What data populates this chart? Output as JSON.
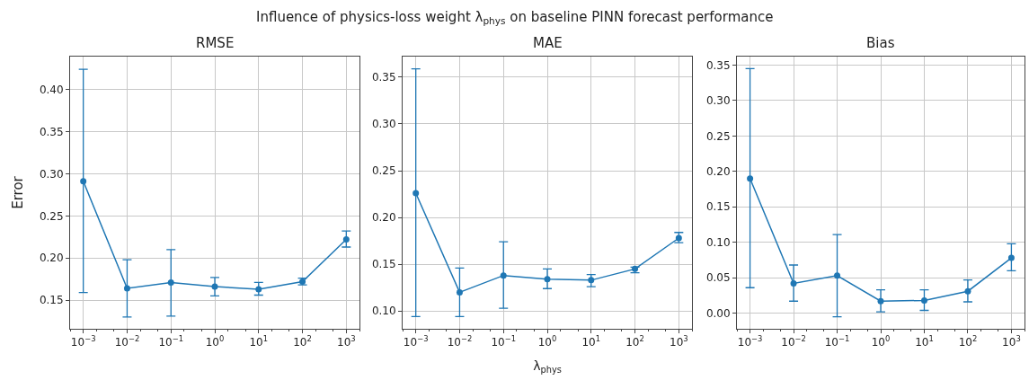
{
  "chart_data": [
    {
      "type": "line",
      "title": "RMSE",
      "ylabel": "Error",
      "annotations": [
        "Influence of physics-loss weight λ$_{phys}$ on baseline PINN forecast performance"
      ],
      "log": "x",
      "grid": true,
      "marker": "circle",
      "line_style": "solid",
      "x": [
        0.001,
        0.01,
        0.1,
        1,
        10,
        100,
        1000
      ],
      "xlim": [
        0.0005,
        2000
      ],
      "xticks": [
        {
          "value": 0.001,
          "label": "10$^{−3}$"
        },
        {
          "value": 0.01,
          "label": "10$^{−2}$"
        },
        {
          "value": 0.1,
          "label": "10$^{−1}$"
        },
        {
          "value": 1,
          "label": "10$^{0}$"
        },
        {
          "value": 10,
          "label": "10$^{1}$"
        },
        {
          "value": 100,
          "label": "10$^{2}$"
        },
        {
          "value": 1000,
          "label": "10$^{3}$"
        }
      ],
      "ylim": [
        0.116,
        0.439
      ],
      "yticks": [
        {
          "value": 0.15,
          "label": "0.15"
        },
        {
          "value": 0.2,
          "label": "0.20"
        },
        {
          "value": 0.25,
          "label": "0.25"
        },
        {
          "value": 0.3,
          "label": "0.30"
        },
        {
          "value": 0.35,
          "label": "0.35"
        },
        {
          "value": 0.4,
          "label": "0.40"
        }
      ],
      "series": [
        {
          "color": "#1f77b4",
          "values": [
            0.291,
            0.164,
            0.171,
            0.166,
            0.163,
            0.172,
            0.222
          ],
          "errors": [
            [
              0.159,
              0.424
            ],
            [
              0.13,
              0.198
            ],
            [
              0.131,
              0.21
            ],
            [
              0.155,
              0.177
            ],
            [
              0.156,
              0.171
            ],
            [
              0.168,
              0.176
            ],
            [
              0.213,
              0.232
            ]
          ]
        }
      ]
    },
    {
      "type": "line",
      "title": "MAE",
      "xlabel": "λ$_{phys}$",
      "log": "x",
      "grid": true,
      "marker": "circle",
      "line_style": "solid",
      "x": [
        0.001,
        0.01,
        0.1,
        1,
        10,
        100,
        1000
      ],
      "xlim": [
        0.0005,
        2000
      ],
      "xticks": [
        {
          "value": 0.001,
          "label": "10$^{−3}$"
        },
        {
          "value": 0.01,
          "label": "10$^{−2}$"
        },
        {
          "value": 0.1,
          "label": "10$^{−1}$"
        },
        {
          "value": 1,
          "label": "10$^{0}$"
        },
        {
          "value": 10,
          "label": "10$^{1}$"
        },
        {
          "value": 100,
          "label": "10$^{2}$"
        },
        {
          "value": 1000,
          "label": "10$^{3}$"
        }
      ],
      "ylim": [
        0.081,
        0.372
      ],
      "yticks": [
        {
          "value": 0.1,
          "label": "0.10"
        },
        {
          "value": 0.15,
          "label": "0.15"
        },
        {
          "value": 0.2,
          "label": "0.20"
        },
        {
          "value": 0.25,
          "label": "0.25"
        },
        {
          "value": 0.3,
          "label": "0.30"
        },
        {
          "value": 0.35,
          "label": "0.35"
        }
      ],
      "series": [
        {
          "color": "#1f77b4",
          "values": [
            0.226,
            0.12,
            0.138,
            0.134,
            0.133,
            0.145,
            0.178
          ],
          "errors": [
            [
              0.094,
              0.359
            ],
            [
              0.094,
              0.146
            ],
            [
              0.103,
              0.174
            ],
            [
              0.124,
              0.145
            ],
            [
              0.126,
              0.139
            ],
            [
              0.141,
              0.147
            ],
            [
              0.173,
              0.184
            ]
          ]
        }
      ]
    },
    {
      "type": "line",
      "title": "Bias",
      "log": "x",
      "grid": true,
      "marker": "circle",
      "line_style": "solid",
      "x": [
        0.001,
        0.01,
        0.1,
        1,
        10,
        100,
        1000
      ],
      "xlim": [
        0.0005,
        2000
      ],
      "xticks": [
        {
          "value": 0.001,
          "label": "10$^{−3}$"
        },
        {
          "value": 0.01,
          "label": "10$^{−2}$"
        },
        {
          "value": 0.1,
          "label": "10$^{−1}$"
        },
        {
          "value": 1,
          "label": "10$^{0}$"
        },
        {
          "value": 10,
          "label": "10$^{1}$"
        },
        {
          "value": 100,
          "label": "10$^{2}$"
        },
        {
          "value": 1000,
          "label": "10$^{3}$"
        }
      ],
      "ylim": [
        -0.022,
        0.362
      ],
      "yticks": [
        {
          "value": 0.0,
          "label": "0.00"
        },
        {
          "value": 0.05,
          "label": "0.05"
        },
        {
          "value": 0.1,
          "label": "0.10"
        },
        {
          "value": 0.15,
          "label": "0.15"
        },
        {
          "value": 0.2,
          "label": "0.20"
        },
        {
          "value": 0.25,
          "label": "0.25"
        },
        {
          "value": 0.3,
          "label": "0.30"
        },
        {
          "value": 0.35,
          "label": "0.35"
        }
      ],
      "series": [
        {
          "color": "#1f77b4",
          "values": [
            0.19,
            0.042,
            0.053,
            0.017,
            0.018,
            0.031,
            0.078
          ],
          "errors": [
            [
              0.036,
              0.345
            ],
            [
              0.017,
              0.068
            ],
            [
              -0.005,
              0.111
            ],
            [
              0.002,
              0.033
            ],
            [
              0.004,
              0.033
            ],
            [
              0.016,
              0.047
            ],
            [
              0.06,
              0.098
            ]
          ]
        }
      ]
    }
  ]
}
